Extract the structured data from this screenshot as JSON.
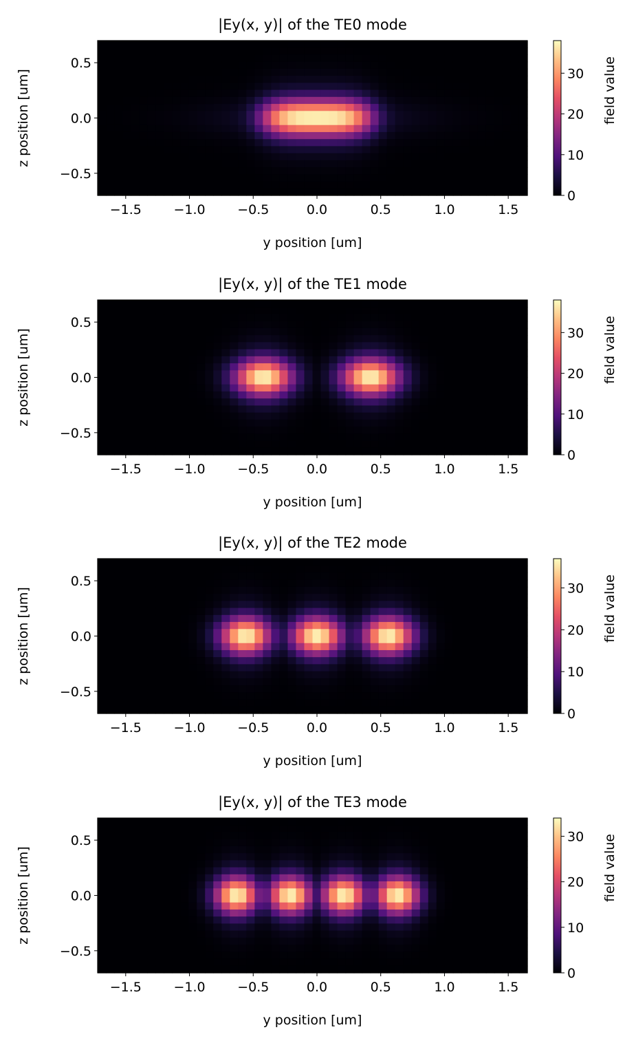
{
  "chart_data": [
    {
      "type": "heatmap",
      "title": "|Ey(x, y)| of the TE0 mode",
      "xlabel": "y position [um]",
      "ylabel": "z position [um]",
      "colorbar_label": "field value",
      "xlim": [
        -1.72,
        1.65
      ],
      "ylim": [
        -0.7,
        0.7
      ],
      "xticks": [
        -1.5,
        -1.0,
        -0.5,
        0.0,
        0.5,
        1.0,
        1.5
      ],
      "xtick_labels": [
        "−1.5",
        "−1.0",
        "−0.5",
        "0.0",
        "0.5",
        "1.0",
        "1.5"
      ],
      "yticks": [
        0.5,
        0.0,
        -0.5
      ],
      "ytick_labels": [
        "0.5",
        "0.0",
        "−0.5"
      ],
      "colorbar_range": [
        0,
        38
      ],
      "colorbar_ticks": [
        0,
        10,
        20,
        30
      ],
      "colorbar_tick_labels": [
        "0",
        "10",
        "20",
        "30"
      ],
      "colormap": "magma",
      "lobe_centers_y": [
        0.0
      ],
      "peak_value": 38
    },
    {
      "type": "heatmap",
      "title": "|Ey(x, y)| of the TE1 mode",
      "xlabel": "y position [um]",
      "ylabel": "z position [um]",
      "colorbar_label": "field value",
      "xlim": [
        -1.72,
        1.65
      ],
      "ylim": [
        -0.7,
        0.7
      ],
      "xticks": [
        -1.5,
        -1.0,
        -0.5,
        0.0,
        0.5,
        1.0,
        1.5
      ],
      "xtick_labels": [
        "−1.5",
        "−1.0",
        "−0.5",
        "0.0",
        "0.5",
        "1.0",
        "1.5"
      ],
      "yticks": [
        0.5,
        0.0,
        -0.5
      ],
      "ytick_labels": [
        "0.5",
        "0.0",
        "−0.5"
      ],
      "colorbar_range": [
        0,
        38
      ],
      "colorbar_ticks": [
        0,
        10,
        20,
        30
      ],
      "colorbar_tick_labels": [
        "0",
        "10",
        "20",
        "30"
      ],
      "colormap": "magma",
      "lobe_centers_y": [
        -0.42,
        0.42
      ],
      "peak_value": 38
    },
    {
      "type": "heatmap",
      "title": "|Ey(x, y)| of the TE2 mode",
      "xlabel": "y position [um]",
      "ylabel": "z position [um]",
      "colorbar_label": "field value",
      "xlim": [
        -1.72,
        1.65
      ],
      "ylim": [
        -0.7,
        0.7
      ],
      "xticks": [
        -1.5,
        -1.0,
        -0.5,
        0.0,
        0.5,
        1.0,
        1.5
      ],
      "xtick_labels": [
        "−1.5",
        "−1.0",
        "−0.5",
        "0.0",
        "0.5",
        "1.0",
        "1.5"
      ],
      "yticks": [
        0.5,
        0.0,
        -0.5
      ],
      "ytick_labels": [
        "0.5",
        "0.0",
        "−0.5"
      ],
      "colorbar_range": [
        0,
        37
      ],
      "colorbar_ticks": [
        0,
        10,
        20,
        30
      ],
      "colorbar_tick_labels": [
        "0",
        "10",
        "20",
        "30"
      ],
      "colormap": "magma",
      "lobe_centers_y": [
        -0.56,
        0.0,
        0.56
      ],
      "peak_value": 37
    },
    {
      "type": "heatmap",
      "title": "|Ey(x, y)| of the TE3 mode",
      "xlabel": "y position [um]",
      "ylabel": "z position [um]",
      "colorbar_label": "field value",
      "xlim": [
        -1.72,
        1.65
      ],
      "ylim": [
        -0.7,
        0.7
      ],
      "xticks": [
        -1.5,
        -1.0,
        -0.5,
        0.0,
        0.5,
        1.0,
        1.5
      ],
      "xtick_labels": [
        "−1.5",
        "−1.0",
        "−0.5",
        "0.0",
        "0.5",
        "1.0",
        "1.5"
      ],
      "yticks": [
        0.5,
        0.0,
        -0.5
      ],
      "ytick_labels": [
        "0.5",
        "0.0",
        "−0.5"
      ],
      "colorbar_range": [
        0,
        34
      ],
      "colorbar_ticks": [
        0,
        10,
        20,
        30
      ],
      "colorbar_tick_labels": [
        "0",
        "10",
        "20",
        "30"
      ],
      "colormap": "magma",
      "lobe_centers_y": [
        -0.63,
        -0.21,
        0.21,
        0.63
      ],
      "peak_value": 34
    }
  ]
}
